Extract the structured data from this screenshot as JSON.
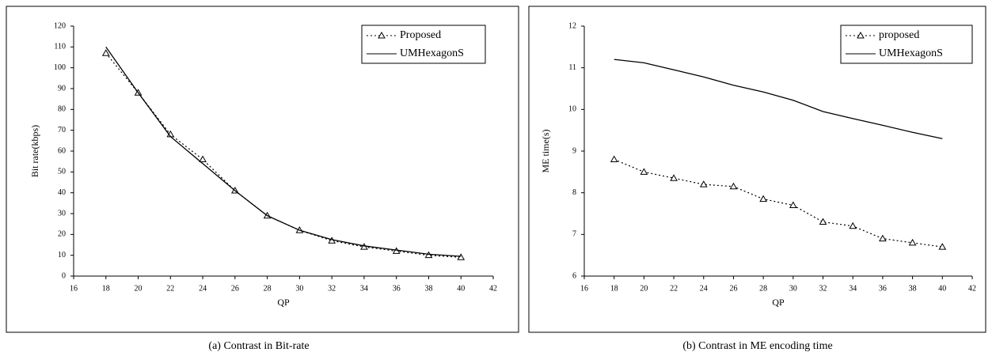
{
  "chart_data": [
    {
      "type": "line",
      "caption": "(a) Contrast in Bit-rate",
      "x_label": "QP",
      "y_label": "Bit rate(kbps)",
      "x": [
        18,
        20,
        22,
        24,
        26,
        28,
        30,
        32,
        34,
        36,
        38,
        40
      ],
      "series": [
        {
          "name": "Proposed",
          "color": "#000000",
          "line_style": "dotted",
          "marker": "triangle",
          "values": [
            107,
            88,
            68,
            56,
            41,
            29,
            22,
            17,
            14,
            12,
            10,
            9
          ]
        },
        {
          "name": "UMHexagonS",
          "color": "#000000",
          "line_style": "solid",
          "marker": null,
          "values": [
            110,
            88,
            67,
            54,
            41,
            29,
            22,
            17.5,
            14.5,
            12.5,
            10.5,
            9.5
          ]
        }
      ],
      "xlim": [
        16,
        42
      ],
      "xticks": [
        16,
        18,
        20,
        22,
        24,
        26,
        28,
        30,
        32,
        34,
        36,
        38,
        40,
        42
      ],
      "ylim": [
        0,
        120
      ],
      "yticks": [
        0,
        10,
        20,
        30,
        40,
        50,
        60,
        70,
        80,
        90,
        100,
        110,
        120
      ],
      "legend": "upper-right",
      "grid": false
    },
    {
      "type": "line",
      "caption": "(b) Contrast in ME encoding time",
      "x_label": "QP",
      "y_label": "ME time(s)",
      "x": [
        18,
        20,
        22,
        24,
        26,
        28,
        30,
        32,
        34,
        36,
        38,
        40
      ],
      "series": [
        {
          "name": "proposed",
          "color": "#000000",
          "line_style": "dotted",
          "marker": "triangle",
          "values": [
            8.8,
            8.5,
            8.35,
            8.2,
            8.15,
            7.85,
            7.7,
            7.3,
            7.2,
            6.9,
            6.8,
            6.7
          ]
        },
        {
          "name": "UMHexagonS",
          "color": "#000000",
          "line_style": "solid",
          "marker": null,
          "values": [
            11.2,
            11.12,
            10.95,
            10.78,
            10.58,
            10.42,
            10.22,
            9.95,
            9.78,
            9.62,
            9.45,
            9.3
          ]
        }
      ],
      "xlim": [
        16,
        42
      ],
      "xticks": [
        16,
        18,
        20,
        22,
        24,
        26,
        28,
        30,
        32,
        34,
        36,
        38,
        40,
        42
      ],
      "ylim": [
        6,
        12
      ],
      "yticks": [
        6,
        7,
        8,
        9,
        10,
        11,
        12
      ],
      "legend": "upper-right",
      "grid": false
    }
  ]
}
